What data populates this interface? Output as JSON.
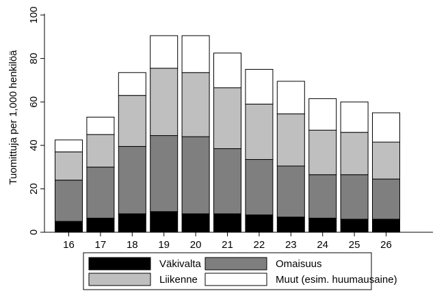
{
  "chart_data": {
    "type": "bar",
    "stacked": true,
    "ylabel": "Tuomittuja per 1,000 henkilöä",
    "xlabel": "",
    "ylim": [
      0,
      100
    ],
    "yticks": [
      0,
      20,
      40,
      60,
      80,
      100
    ],
    "grid": false,
    "categories": [
      "16",
      "17",
      "18",
      "19",
      "20",
      "21",
      "22",
      "23",
      "24",
      "25",
      "26"
    ],
    "series": [
      {
        "name": "Väkivalta",
        "color": "#000000",
        "values": [
          5,
          6.5,
          8.5,
          9.5,
          8.5,
          8.5,
          8,
          7,
          6.5,
          6,
          6
        ]
      },
      {
        "name": "Omaisuus",
        "color": "#7f7f7f",
        "values": [
          19,
          23.5,
          31,
          35,
          35.5,
          30,
          25.5,
          23.5,
          20,
          20.5,
          18.5
        ]
      },
      {
        "name": "Liikenne",
        "color": "#bfbfbf",
        "values": [
          13,
          15,
          23.5,
          31,
          29.5,
          28,
          25.5,
          24,
          20.5,
          19.5,
          17
        ]
      },
      {
        "name": "Muut (esim. huumausaine)",
        "color": "#ffffff",
        "values": [
          5.5,
          8,
          10.5,
          15,
          17,
          16,
          16,
          15,
          14.5,
          14,
          13.5
        ]
      }
    ],
    "legend_position": "bottom"
  }
}
